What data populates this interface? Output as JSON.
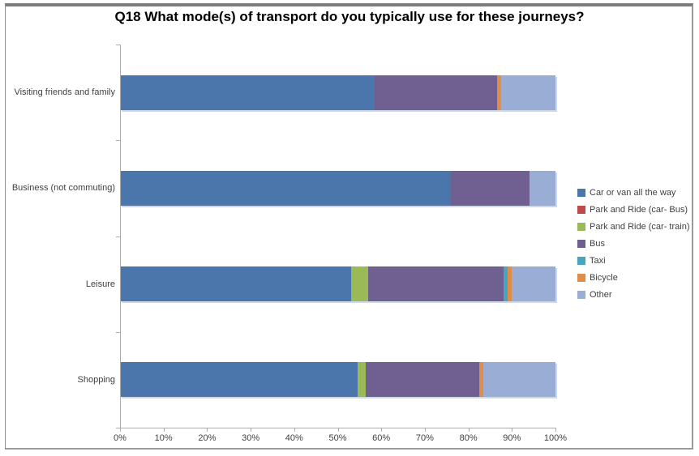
{
  "chart_data": {
    "type": "bar",
    "orientation": "horizontal",
    "stacked": true,
    "title": "Q18 What mode(s) of transport do you typically use for these journeys?",
    "categories": [
      "Visiting friends and family",
      "Business (not commuting)",
      "Leisure",
      "Shopping"
    ],
    "series": [
      {
        "name": "Car or van all the way",
        "color": "#4a76ab",
        "values": [
          58.5,
          76,
          53,
          54.5
        ]
      },
      {
        "name": "Park and Ride (car- Bus)",
        "color": "#be4b48",
        "values": [
          0,
          0,
          0,
          0
        ]
      },
      {
        "name": "Park and Ride (car- train)",
        "color": "#9aba58",
        "values": [
          0,
          0,
          4,
          2
        ]
      },
      {
        "name": "Bus",
        "color": "#705f91",
        "values": [
          28,
          18,
          31,
          26
        ]
      },
      {
        "name": "Taxi",
        "color": "#45a6be",
        "values": [
          0,
          0,
          1,
          0
        ]
      },
      {
        "name": "Bicycle",
        "color": "#e08d49",
        "values": [
          1,
          0,
          1,
          1
        ]
      },
      {
        "name": "Other",
        "color": "#9aadd4",
        "values": [
          12.5,
          6,
          10,
          16.5
        ]
      }
    ],
    "x_axis": {
      "min": 0,
      "max": 100,
      "tick_labels": [
        "0%",
        "10%",
        "20%",
        "30%",
        "40%",
        "50%",
        "60%",
        "70%",
        "80%",
        "90%",
        "100%"
      ]
    },
    "legend_position": "right",
    "grid": false,
    "plot_background": "#ffffff"
  }
}
